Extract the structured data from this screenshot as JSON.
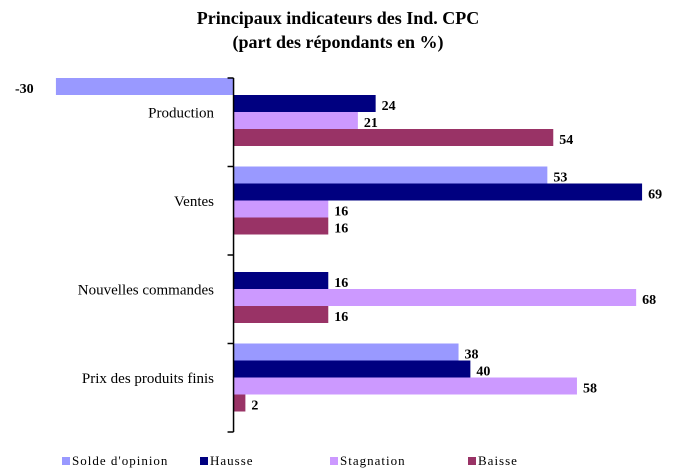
{
  "chart_data": {
    "type": "hbar",
    "title": "Principaux indicateurs des Ind. CPC",
    "subtitle": "(part des répondants en %)",
    "categories": [
      "Production",
      "Ventes",
      "Nouvelles commandes",
      "Prix des produits finis"
    ],
    "series": [
      {
        "name": "Solde d'opinion",
        "color": "#9999ff",
        "values": [
          -30,
          53,
          null,
          38
        ]
      },
      {
        "name": "Hausse",
        "color": "#000080",
        "values": [
          24,
          69,
          16,
          40
        ]
      },
      {
        "name": "Stagnation",
        "color": "#cc99ff",
        "values": [
          21,
          16,
          68,
          58
        ]
      },
      {
        "name": "Baisse",
        "color": "#993366",
        "values": [
          54,
          16,
          16,
          2
        ]
      }
    ],
    "xlim": [
      -31,
      70
    ],
    "legend": "bottom"
  }
}
